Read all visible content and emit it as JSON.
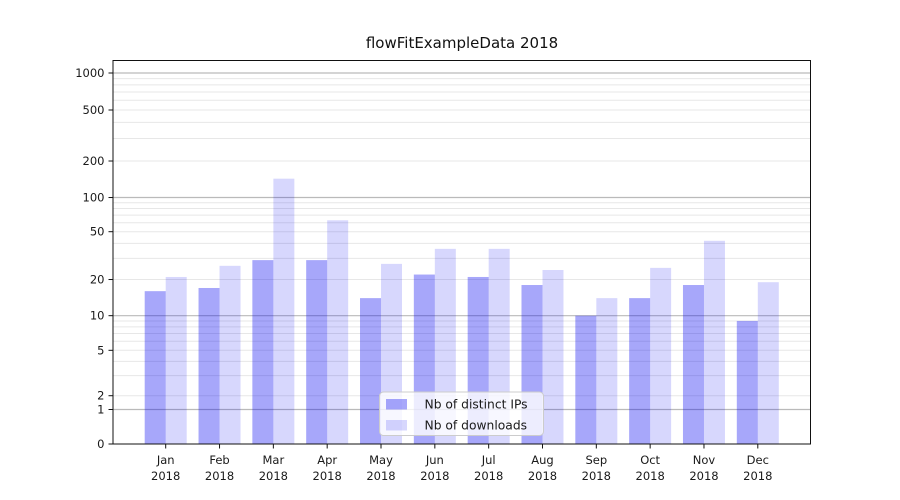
{
  "title": "flowFitExampleData 2018",
  "chart_data": {
    "type": "bar",
    "title": "flowFitExampleData 2018",
    "year": "2018",
    "months": [
      "Jan",
      "Feb",
      "Mar",
      "Apr",
      "May",
      "Jun",
      "Jul",
      "Aug",
      "Sep",
      "Oct",
      "Nov",
      "Dec"
    ],
    "categories": [
      "Jan 2018",
      "Feb 2018",
      "Mar 2018",
      "Apr 2018",
      "May 2018",
      "Jun 2018",
      "Jul 2018",
      "Aug 2018",
      "Sep 2018",
      "Oct 2018",
      "Nov 2018",
      "Dec 2018"
    ],
    "series": [
      {
        "name": "Nb of distinct IPs",
        "color": "rgba(0,0,240,0.345)",
        "values": [
          16,
          17,
          29,
          29,
          14,
          22,
          21,
          18,
          10,
          14,
          18,
          9
        ]
      },
      {
        "name": "Nb of downloads",
        "color": "rgba(0,0,240,0.155)",
        "values": [
          21,
          26,
          143,
          63,
          27,
          36,
          36,
          24,
          14,
          25,
          42,
          19
        ]
      }
    ],
    "y_scale": "symlog",
    "y_ticks": [
      0,
      1,
      2,
      5,
      10,
      20,
      50,
      100,
      200,
      500,
      1000
    ],
    "ylim": [
      0,
      1380
    ],
    "grid": true,
    "legend_position": "lower center"
  },
  "colors": {
    "major_grid": "#bababa",
    "minor_grid": "#e7e7e7",
    "spine": "#111111",
    "text": "#1a1a1a",
    "legend_bg": "rgba(255,255,255,0.8)",
    "legend_border": "#cccccc"
  }
}
